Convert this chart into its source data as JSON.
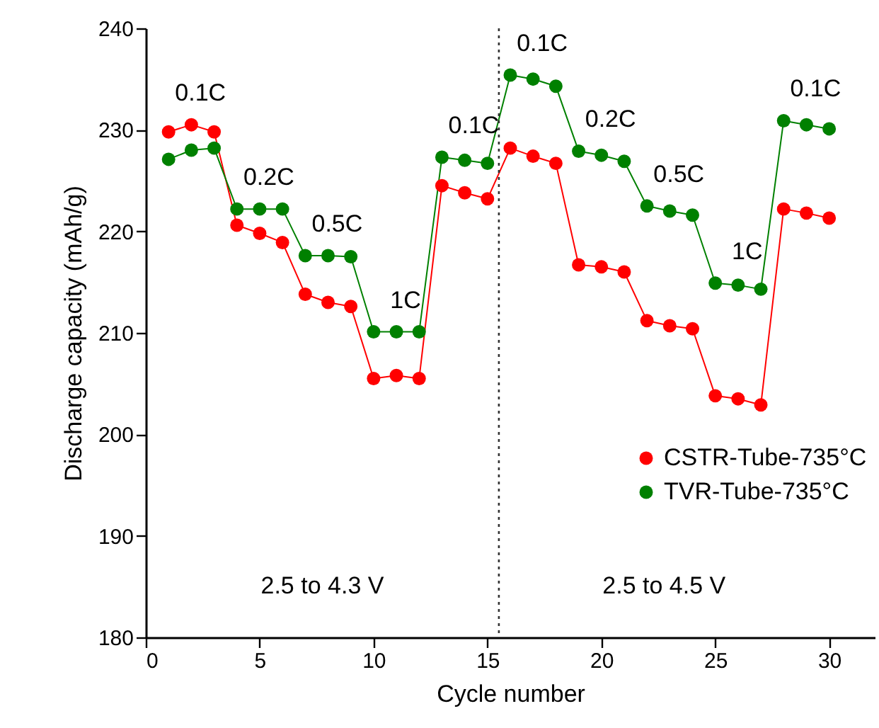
{
  "chart_data": {
    "type": "line",
    "xlabel": "Cycle number",
    "ylabel": "Discharge capacity (mAh/g)",
    "x": [
      1,
      2,
      3,
      4,
      5,
      6,
      7,
      8,
      9,
      10,
      11,
      12,
      13,
      14,
      15,
      16,
      17,
      18,
      19,
      20,
      21,
      22,
      23,
      24,
      25,
      26,
      27,
      28,
      29,
      30
    ],
    "series": [
      {
        "name": "CSTR-Tube-735°C",
        "color": "#ff0000",
        "values": [
          229.8,
          230.5,
          229.8,
          220.6,
          219.8,
          218.9,
          213.8,
          213.0,
          212.6,
          205.5,
          205.8,
          205.5,
          224.5,
          223.8,
          223.2,
          228.2,
          227.4,
          226.7,
          216.7,
          216.5,
          216.0,
          211.2,
          210.7,
          210.4,
          203.8,
          203.5,
          202.9,
          222.2,
          221.8,
          221.3
        ]
      },
      {
        "name": "TVR-Tube-735°C",
        "color": "#008000",
        "values": [
          227.1,
          228.0,
          228.2,
          222.2,
          222.2,
          222.2,
          217.6,
          217.6,
          217.5,
          210.1,
          210.1,
          210.1,
          227.3,
          227.0,
          226.7,
          235.4,
          235.0,
          234.3,
          227.9,
          227.5,
          226.9,
          222.5,
          222.0,
          221.6,
          214.9,
          214.7,
          214.3,
          230.9,
          230.5,
          230.1
        ]
      }
    ],
    "xlim": [
      0,
      32
    ],
    "xticks": [
      0,
      5,
      10,
      15,
      20,
      25,
      30
    ],
    "ylim": [
      180,
      240
    ],
    "yticks": [
      180,
      190,
      200,
      210,
      220,
      230,
      240
    ],
    "marker": "circle",
    "line_style": "solid",
    "grid": false,
    "legend": "right",
    "ref_lines": [
      {
        "axis": "x",
        "value": 15.5,
        "line_style": "dotted",
        "color": "#333333"
      }
    ],
    "annotations": [
      "0.1C",
      "0.2C",
      "0.5C",
      "1C",
      "0.1C",
      "0.1C",
      "0.2C",
      "0.5C",
      "1C",
      "0.1C",
      "2.5 to 4.3 V",
      "2.5 to 4.5 V"
    ]
  }
}
